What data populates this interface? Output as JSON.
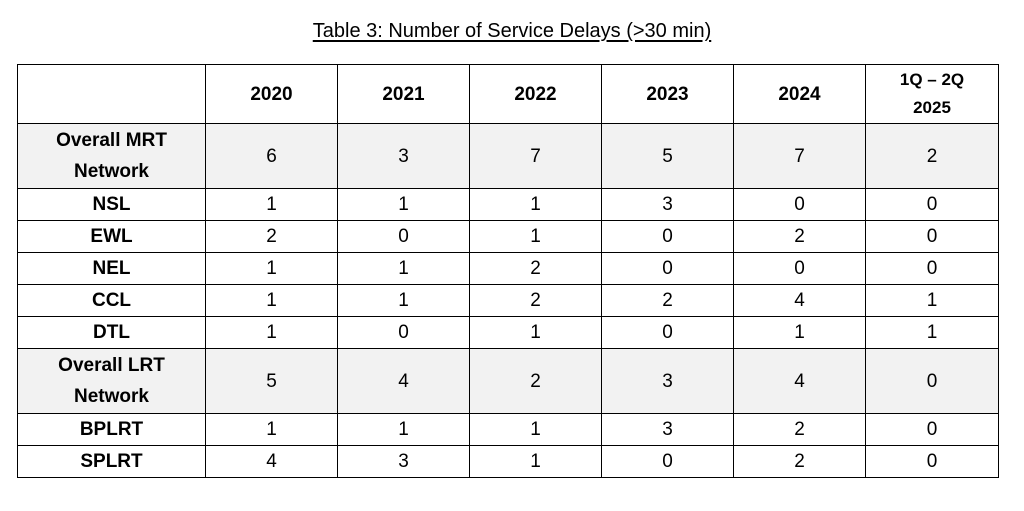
{
  "caption": "Table 3: Number of Service Delays (>30 min)",
  "table": {
    "columns": [
      "2020",
      "2021",
      "2022",
      "2023",
      "2024",
      "1Q – 2Q 2025"
    ],
    "column_last_line1": "1Q – 2Q",
    "column_last_line2": "2025",
    "rows": [
      {
        "label_line1": "Overall MRT",
        "label_line2": "Network",
        "label": "Overall MRT Network",
        "group": true,
        "values": [
          "6",
          "3",
          "7",
          "5",
          "7",
          "2"
        ]
      },
      {
        "label": "NSL",
        "group": false,
        "values": [
          "1",
          "1",
          "1",
          "3",
          "0",
          "0"
        ]
      },
      {
        "label": "EWL",
        "group": false,
        "values": [
          "2",
          "0",
          "1",
          "0",
          "2",
          "0"
        ]
      },
      {
        "label": "NEL",
        "group": false,
        "values": [
          "1",
          "1",
          "2",
          "0",
          "0",
          "0"
        ]
      },
      {
        "label": "CCL",
        "group": false,
        "values": [
          "1",
          "1",
          "2",
          "2",
          "4",
          "1"
        ]
      },
      {
        "label": "DTL",
        "group": false,
        "values": [
          "1",
          "0",
          "1",
          "0",
          "1",
          "1"
        ]
      },
      {
        "label_line1": "Overall LRT",
        "label_line2": "Network",
        "label": "Overall LRT Network",
        "group": true,
        "values": [
          "5",
          "4",
          "2",
          "3",
          "4",
          "0"
        ]
      },
      {
        "label": "BPLRT",
        "group": false,
        "values": [
          "1",
          "1",
          "1",
          "3",
          "2",
          "0"
        ]
      },
      {
        "label": "SPLRT",
        "group": false,
        "values": [
          "4",
          "3",
          "1",
          "0",
          "2",
          "0"
        ]
      }
    ]
  },
  "colors": {
    "group_row_background": "#f2f2f2",
    "border": "#000000"
  }
}
